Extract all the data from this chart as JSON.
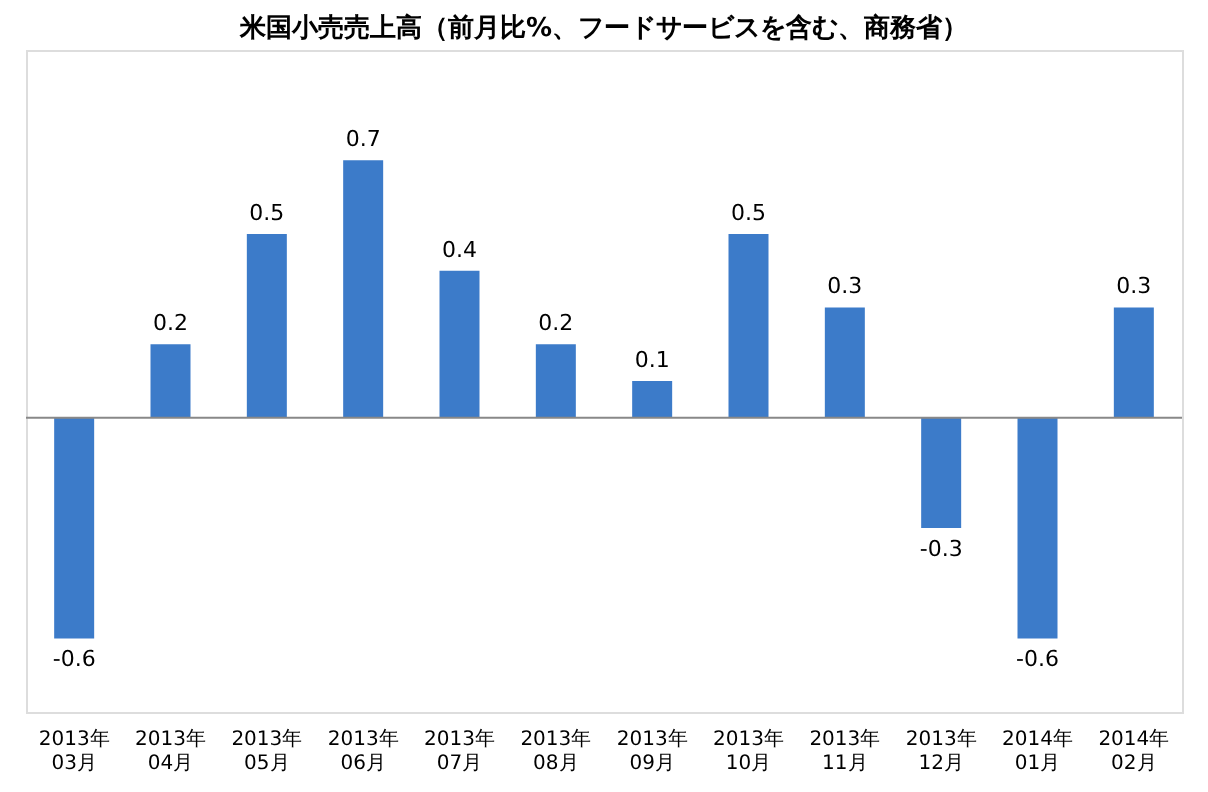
{
  "chart_data": {
    "type": "bar",
    "title": "米国小売売上高（前月比%、フードサービスを含む、商務省）",
    "categories": [
      "2013年\n03月",
      "2013年\n04月",
      "2013年\n05月",
      "2013年\n06月",
      "2013年\n07月",
      "2013年\n08月",
      "2013年\n09月",
      "2013年\n10月",
      "2013年\n11月",
      "2013年\n12月",
      "2014年\n01月",
      "2014年\n02月"
    ],
    "values": [
      -0.6,
      0.2,
      0.5,
      0.7,
      0.4,
      0.2,
      0.1,
      0.5,
      0.3,
      -0.3,
      -0.6,
      0.3
    ],
    "color": "#3c7bc9",
    "data_labels": true,
    "grid": false
  }
}
